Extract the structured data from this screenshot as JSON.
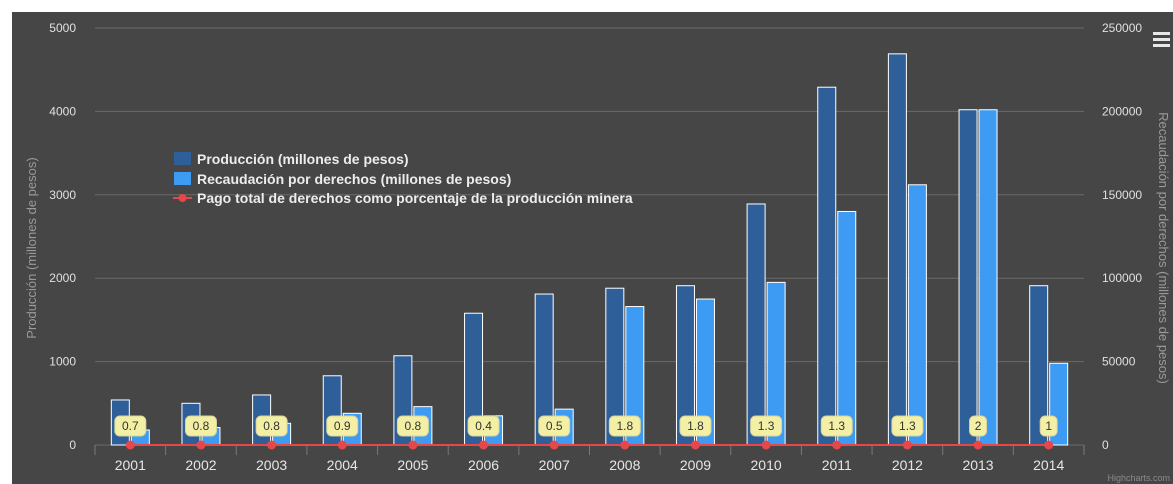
{
  "colors": {
    "background": "#464646",
    "grid": "#6a6a6a",
    "production": "#2f5f99",
    "collection": "#3d9bf4",
    "percentage": "#e8474a",
    "label_bg": "#f3f0a6"
  },
  "menu_icon": "hamburger-menu-icon",
  "credit": "Highcharts.com",
  "chart_data": {
    "type": "bar",
    "categories": [
      "2001",
      "2002",
      "2003",
      "2004",
      "2005",
      "2006",
      "2007",
      "2008",
      "2009",
      "2010",
      "2011",
      "2012",
      "2013",
      "2014"
    ],
    "y_left": {
      "label": "Producción (millones de pesos)",
      "ticks": [
        "0",
        "1000",
        "2000",
        "3000",
        "4000",
        "5000"
      ],
      "ylim": [
        0,
        5000
      ]
    },
    "y_right": {
      "label": "Recaudación por derechos (millones de pesos)",
      "ticks": [
        "0",
        "50000",
        "100000",
        "150000",
        "200000",
        "250000"
      ],
      "ylim": [
        0,
        250000
      ]
    },
    "grid": true,
    "legend_position": "left-middle",
    "series": [
      {
        "name": "Producción (millones de pesos)",
        "type": "bar",
        "axis": "left",
        "values": [
          540,
          500,
          600,
          830,
          1070,
          1580,
          1810,
          1880,
          1910,
          2890,
          4290,
          4690,
          4020,
          1910
        ]
      },
      {
        "name": "Recaudación por derechos (millones de pesos)",
        "type": "bar",
        "axis": "right",
        "values": [
          9000,
          10500,
          13000,
          19000,
          23000,
          17500,
          21500,
          83000,
          87500,
          97500,
          140000,
          156000,
          201000,
          49000
        ]
      },
      {
        "name": "Pago total de derechos como porcentaje de la producción minera",
        "type": "line",
        "axis": "right",
        "values": [
          0.7,
          0.8,
          0.8,
          0.9,
          0.8,
          0.4,
          0.5,
          1.8,
          1.8,
          1.3,
          1.3,
          1.3,
          2,
          1
        ],
        "labels": [
          "0.7",
          "0.8",
          "0.8",
          "0.9",
          "0.8",
          "0.4",
          "0.5",
          "1.8",
          "1.8",
          "1.3",
          "1.3",
          "1.3",
          "2",
          "1"
        ]
      }
    ]
  }
}
